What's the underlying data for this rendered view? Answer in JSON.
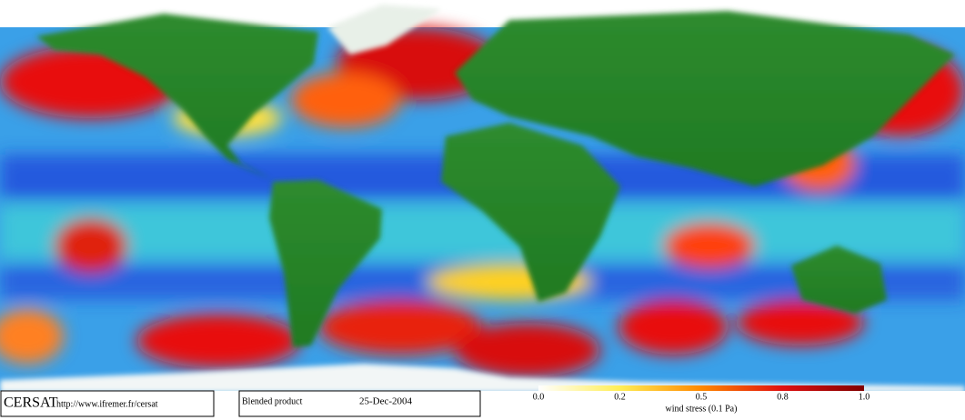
{
  "footer": {
    "logo": "CERSAT",
    "url": "http://www.ifremer.fr/cersat",
    "product": "Blended product",
    "date": "25-Dec-2004"
  },
  "colorbar": {
    "tick_labels": [
      "0.0",
      "0.2",
      "0.5",
      "0.8",
      "1.0"
    ],
    "label": "wind stress (0.1 Pa)"
  }
}
